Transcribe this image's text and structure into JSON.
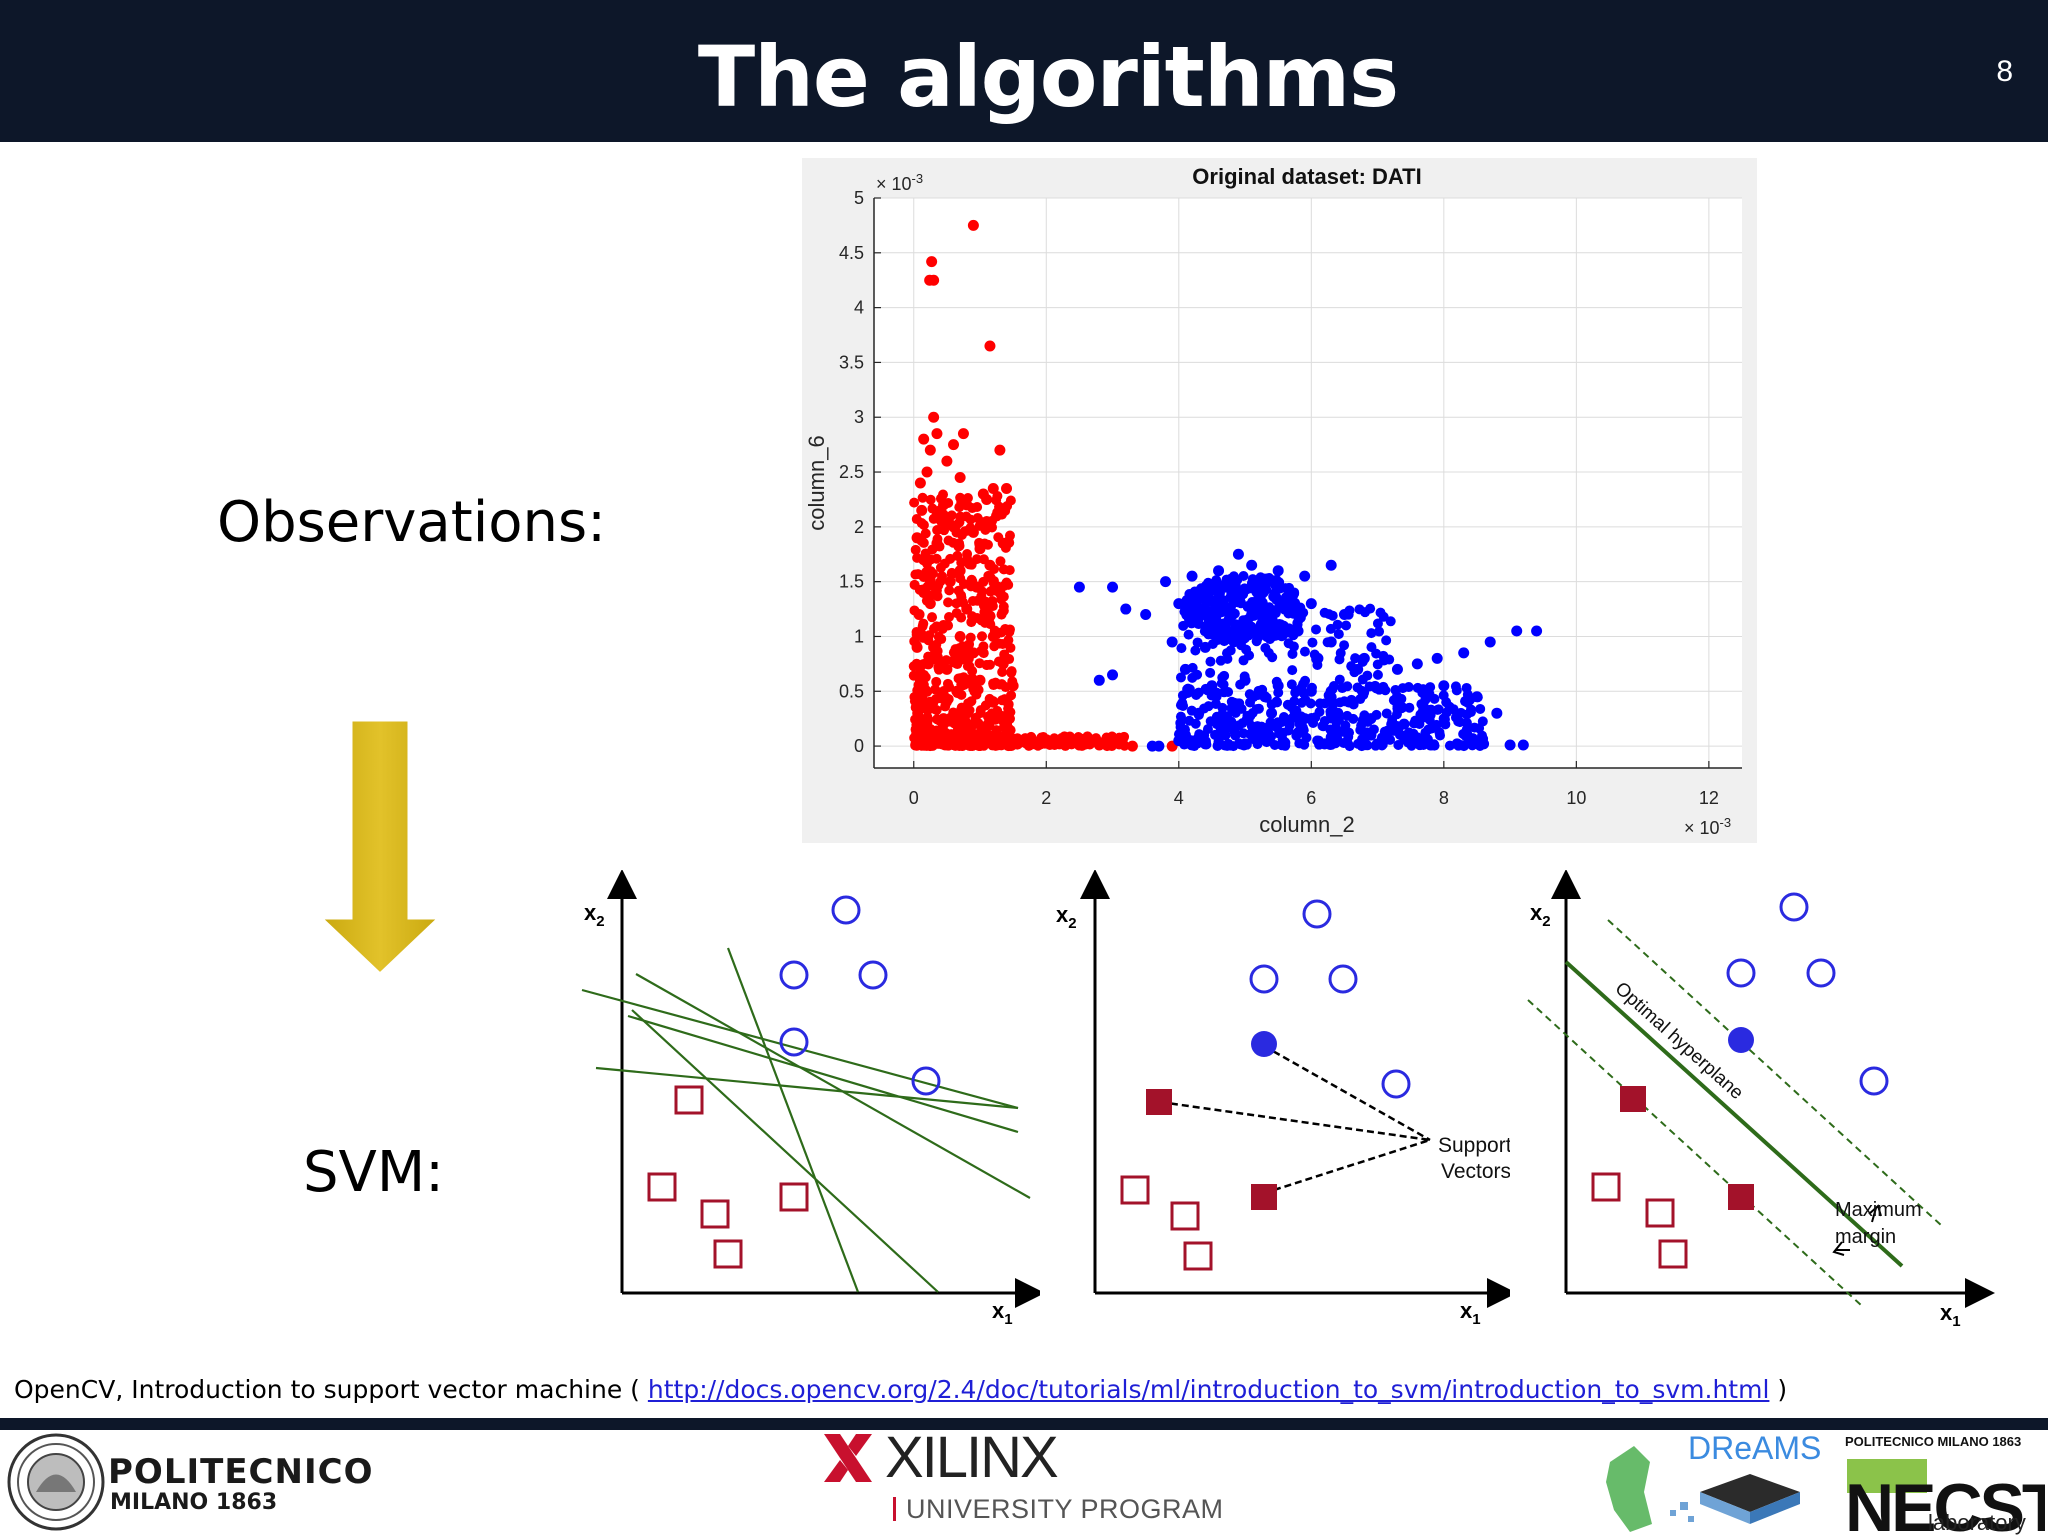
{
  "header": {
    "title": "The algorithms",
    "slide_number": "8"
  },
  "labels": {
    "observations": "Observations:",
    "svm": "SVM:"
  },
  "chart_data": {
    "type": "scatter",
    "title": "Original dataset: DATI",
    "xlabel": "column_2",
    "ylabel": "column_6",
    "x_exponent_label": "× 10",
    "x_exponent_power": "-3",
    "y_exponent_label": "× 10",
    "y_exponent_power": "-3",
    "xlim": [
      -0.6,
      12.5
    ],
    "ylim": [
      -0.2,
      5
    ],
    "x_ticks": [
      "0",
      "2",
      "4",
      "6",
      "8",
      "10",
      "12"
    ],
    "x_tick_values": [
      0,
      2,
      4,
      6,
      8,
      10,
      12
    ],
    "y_ticks": [
      "0",
      "0.5",
      "1",
      "1.5",
      "2",
      "2.5",
      "3",
      "3.5",
      "4",
      "4.5",
      "5"
    ],
    "y_tick_values": [
      0,
      0.5,
      1,
      1.5,
      2,
      2.5,
      3,
      3.5,
      4,
      4.5,
      5
    ],
    "grid": true,
    "series": [
      {
        "name": "class-red",
        "color": "#ff0000",
        "points": [
          [
            0.9,
            4.75
          ],
          [
            0.27,
            4.42
          ],
          [
            0.24,
            4.25
          ],
          [
            0.3,
            4.25
          ],
          [
            1.15,
            3.65
          ],
          [
            0.3,
            3.0
          ],
          [
            0.15,
            2.8
          ],
          [
            0.35,
            2.85
          ],
          [
            0.75,
            2.85
          ],
          [
            0.25,
            2.7
          ],
          [
            0.6,
            2.75
          ],
          [
            1.3,
            2.7
          ],
          [
            0.5,
            2.6
          ],
          [
            0.2,
            2.5
          ],
          [
            0.1,
            2.4
          ],
          [
            0.7,
            2.45
          ],
          [
            1.05,
            2.3
          ],
          [
            1.2,
            2.35
          ],
          [
            1.4,
            2.35
          ],
          [
            0.45,
            2.2
          ],
          [
            0.8,
            2.2
          ],
          [
            1.1,
            2.25
          ],
          [
            0.6,
            2.0
          ],
          [
            1.25,
            2.1
          ],
          [
            0.9,
            1.95
          ],
          [
            0.35,
            1.85
          ],
          [
            1.0,
            1.8
          ],
          [
            1.35,
            1.85
          ],
          [
            0.15,
            1.7
          ],
          [
            0.7,
            1.6
          ],
          [
            1.15,
            1.65
          ],
          [
            0.55,
            1.5
          ],
          [
            0.95,
            1.45
          ],
          [
            1.3,
            1.4
          ],
          [
            0.25,
            1.3
          ],
          [
            0.8,
            1.25
          ],
          [
            1.1,
            1.2
          ],
          [
            0.45,
            1.1
          ],
          [
            0.7,
            1.0
          ],
          [
            1.2,
            1.0
          ],
          [
            0.3,
            0.9
          ],
          [
            0.9,
            0.85
          ],
          [
            1.35,
            0.75
          ],
          [
            0.5,
            0.7
          ],
          [
            0.1,
            0.6
          ],
          [
            1.0,
            0.6
          ],
          [
            1.5,
            0.55
          ],
          [
            0.65,
            0.5
          ],
          [
            0.25,
            0.4
          ],
          [
            1.2,
            0.4
          ],
          [
            0.8,
            0.3
          ],
          [
            0.45,
            0.25
          ],
          [
            1.4,
            0.2
          ],
          [
            0.1,
            0.15
          ],
          [
            0.95,
            0.1
          ],
          [
            0.35,
            0.05
          ],
          [
            1.6,
            0.05
          ],
          [
            1.9,
            0.02
          ],
          [
            2.2,
            0.02
          ],
          [
            2.5,
            0.01
          ],
          [
            2.8,
            0.01
          ],
          [
            3.3,
            0.0
          ],
          [
            3.9,
            0.0
          ],
          [
            0.05,
            1.9
          ],
          [
            0.08,
            1.2
          ],
          [
            0.05,
            0.9
          ],
          [
            0.06,
            0.3
          ],
          [
            0.12,
            2.15
          ],
          [
            0.18,
            1.55
          ],
          [
            0.22,
            0.75
          ]
        ]
      },
      {
        "name": "class-blue",
        "color": "#0000ff",
        "points": [
          [
            2.5,
            1.45
          ],
          [
            3.0,
            1.45
          ],
          [
            3.8,
            1.5
          ],
          [
            4.2,
            1.55
          ],
          [
            4.6,
            1.6
          ],
          [
            4.9,
            1.75
          ],
          [
            5.1,
            1.65
          ],
          [
            5.5,
            1.6
          ],
          [
            5.9,
            1.55
          ],
          [
            6.3,
            1.65
          ],
          [
            3.2,
            1.25
          ],
          [
            3.5,
            1.2
          ],
          [
            4.0,
            1.3
          ],
          [
            4.4,
            1.35
          ],
          [
            4.8,
            1.4
          ],
          [
            5.2,
            1.3
          ],
          [
            5.6,
            1.25
          ],
          [
            6.0,
            1.3
          ],
          [
            6.5,
            1.2
          ],
          [
            4.6,
            1.1
          ],
          [
            5.0,
            1.05
          ],
          [
            5.4,
            1.0
          ],
          [
            5.8,
            1.05
          ],
          [
            6.3,
            0.95
          ],
          [
            6.8,
            0.8
          ],
          [
            3.0,
            0.65
          ],
          [
            2.8,
            0.6
          ],
          [
            3.9,
            0.95
          ],
          [
            4.1,
            0.7
          ],
          [
            4.5,
            0.55
          ],
          [
            5.0,
            0.6
          ],
          [
            5.5,
            0.55
          ],
          [
            6.0,
            0.5
          ],
          [
            6.7,
            0.7
          ],
          [
            7.3,
            0.7
          ],
          [
            7.6,
            0.75
          ],
          [
            7.9,
            0.8
          ],
          [
            8.3,
            0.85
          ],
          [
            8.7,
            0.95
          ],
          [
            9.1,
            1.05
          ],
          [
            9.4,
            1.05
          ],
          [
            8.0,
            0.55
          ],
          [
            7.7,
            0.35
          ],
          [
            8.5,
            0.45
          ],
          [
            8.8,
            0.3
          ],
          [
            4.3,
            0.3
          ],
          [
            4.9,
            0.35
          ],
          [
            5.4,
            0.3
          ],
          [
            5.9,
            0.25
          ],
          [
            6.4,
            0.3
          ],
          [
            6.9,
            0.25
          ],
          [
            7.4,
            0.2
          ],
          [
            4.1,
            0.1
          ],
          [
            4.7,
            0.15
          ],
          [
            5.2,
            0.1
          ],
          [
            5.8,
            0.12
          ],
          [
            6.3,
            0.08
          ],
          [
            6.9,
            0.1
          ],
          [
            7.5,
            0.05
          ],
          [
            8.2,
            0.02
          ],
          [
            8.6,
            0.02
          ],
          [
            9.0,
            0.01
          ],
          [
            9.2,
            0.01
          ],
          [
            3.7,
            0.0
          ],
          [
            3.6,
            0.0
          ],
          [
            4.0,
            0.05
          ],
          [
            4.4,
            0.02
          ],
          [
            5.0,
            0.02
          ],
          [
            5.6,
            0.03
          ],
          [
            6.2,
            0.02
          ],
          [
            7.0,
            0.02
          ],
          [
            7.8,
            0.01
          ],
          [
            5.3,
            0.45
          ],
          [
            6.6,
            0.4
          ],
          [
            4.6,
            1.3
          ],
          [
            5.1,
            1.2
          ],
          [
            4.8,
            1.5
          ],
          [
            5.3,
            1.45
          ],
          [
            4.4,
            0.9
          ],
          [
            6.1,
            0.8
          ]
        ]
      }
    ]
  },
  "svm_figures": {
    "axis_x1": "x",
    "axis_x2": "x",
    "sub_1": "1",
    "sub_2": "2",
    "support_vectors_line1": "Support",
    "support_vectors_line2": "Vectors",
    "optimal_hyperplane": "Optimal hyperplane",
    "maximum_margin_line1": "Maximum",
    "maximum_margin_line2": "margin",
    "class_circle_color": "#2a2ae0",
    "class_square_color": "#a3122a",
    "line_color": "#2e6b1a"
  },
  "citation": {
    "prefix": "OpenCV, Introduction to support vector machine ( ",
    "link": "http://docs.opencv.org/2.4/doc/tutorials/ml/introduction_to_svm/introduction_to_svm.html",
    "suffix": " )"
  },
  "footer": {
    "polimi_name": "POLITECNICO",
    "polimi_sub": "MILANO 1863",
    "xilinx_name": "XILINX",
    "xilinx_sub": "UNIVERSITY PROGRAM",
    "dreams_name": "DReAMS",
    "necst_top": "POLITECNICO MILANO 1863",
    "necst_name": "NECST",
    "necst_lab": "laboratory"
  }
}
